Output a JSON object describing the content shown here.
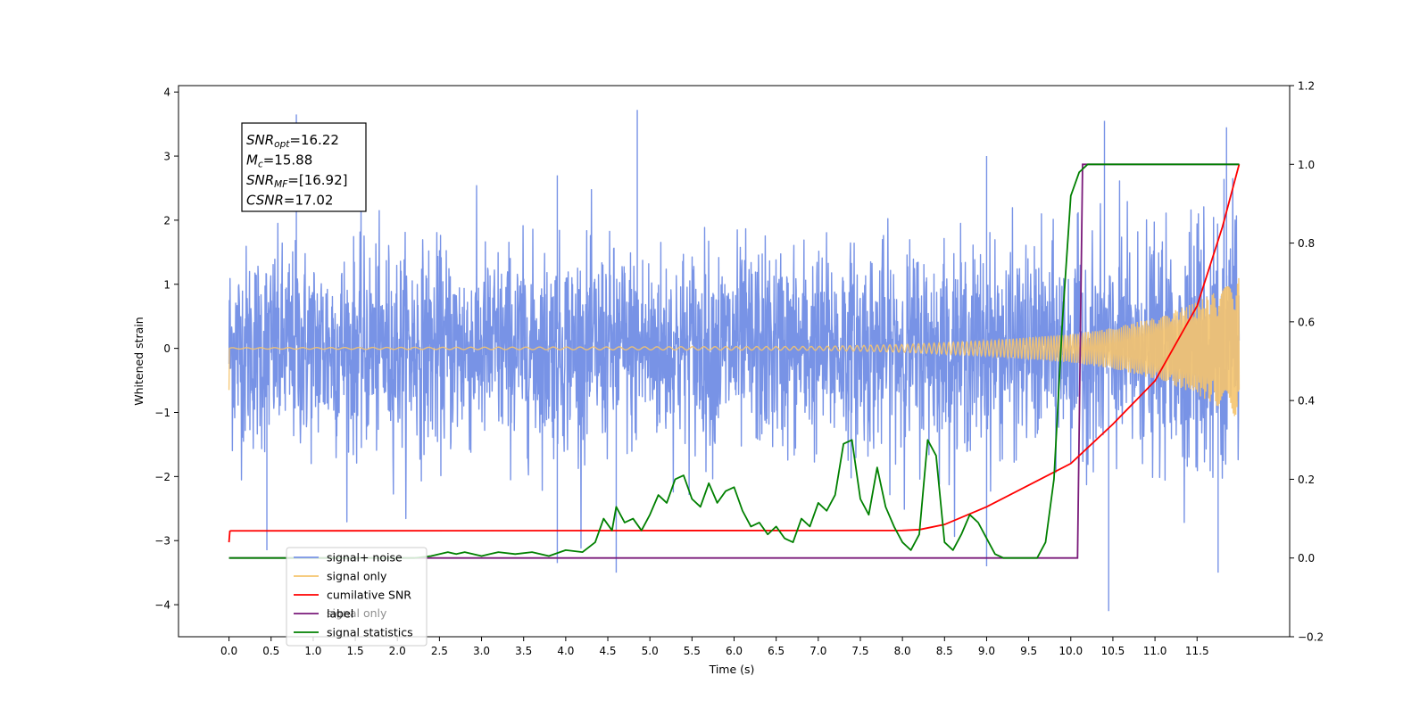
{
  "chart_data": {
    "type": "line",
    "xlabel": "Time (s)",
    "ylabel": "Whitened strain",
    "xlim": [
      -0.6,
      12.6
    ],
    "ylim_left": [
      -4.5,
      4.1
    ],
    "ylim_right": [
      -0.2,
      1.2
    ],
    "x_ticks": [
      "0.0",
      "0.5",
      "1.0",
      "1.5",
      "2.0",
      "2.5",
      "3.0",
      "3.5",
      "4.0",
      "4.5",
      "5.0",
      "5.5",
      "6.0",
      "6.5",
      "7.0",
      "7.5",
      "8.0",
      "8.5",
      "9.0",
      "9.5",
      "10.0",
      "10.5",
      "11.0",
      "11.5"
    ],
    "y_ticks_left": [
      "4",
      "3",
      "2",
      "1",
      "0",
      "−1",
      "−2",
      "−3",
      "−4"
    ],
    "y_ticks_right": [
      "1.2",
      "1.0",
      "0.8",
      "0.6",
      "0.4",
      "0.2",
      "0.0",
      "−0.2"
    ],
    "annotation": [
      {
        "name": "SNR",
        "sub": "opt",
        "value": "=16.22"
      },
      {
        "name": "M",
        "sub": "c",
        "value": "=15.88"
      },
      {
        "name": "SNR",
        "sub": "MF",
        "value": "=[16.92]"
      },
      {
        "name": "CSNR",
        "sub": "",
        "value": "=17.02"
      }
    ],
    "legend": {
      "placement": "lower-left",
      "entries": [
        {
          "label": "signal+ noise",
          "color": "#7893e6"
        },
        {
          "label": "signal only",
          "color": "#f5c46e"
        },
        {
          "label": "cumilative SNR",
          "color": "#ff0000"
        },
        {
          "label": "label",
          "color": "#7a1a7a"
        },
        {
          "label": "signal statistics",
          "color": "#008000"
        }
      ],
      "hidden_text": "signal only"
    },
    "series": [
      {
        "name": "signal+ noise",
        "axis": "left",
        "color": "#7893e6",
        "description": "whitened noisy strain, roughly Gaussian, peaks near ±3.7",
        "x_range": [
          0.0,
          12.0
        ],
        "spikes_up": [
          [
            0.8,
            3.65
          ],
          [
            4.85,
            3.72
          ],
          [
            10.4,
            3.55
          ],
          [
            11.85,
            3.45
          ],
          [
            3.9,
            2.7
          ],
          [
            9.0,
            3.0
          ]
        ],
        "spikes_down": [
          [
            10.45,
            -4.1
          ],
          [
            4.6,
            -3.5
          ],
          [
            11.75,
            -3.5
          ],
          [
            0.45,
            -3.15
          ],
          [
            3.9,
            -3.35
          ],
          [
            9.0,
            -3.4
          ]
        ]
      },
      {
        "name": "signal only",
        "axis": "left",
        "color": "#f5c46e",
        "description": "chirp with amplitude growing toward merger",
        "x": [
          0.0,
          7.0,
          8.0,
          9.0,
          10.0,
          10.5,
          11.0,
          11.5,
          12.0
        ],
        "amplitude": [
          0.01,
          0.03,
          0.06,
          0.12,
          0.22,
          0.32,
          0.48,
          0.72,
          1.1
        ]
      },
      {
        "name": "cumilative SNR",
        "axis": "right",
        "color": "#ff0000",
        "x": [
          0.0,
          0.01,
          0.02,
          8.0,
          8.2,
          8.5,
          9.0,
          9.5,
          10.0,
          10.5,
          11.0,
          11.5,
          11.8,
          12.0
        ],
        "y": [
          0.04,
          0.068,
          0.069,
          0.07,
          0.072,
          0.085,
          0.13,
          0.185,
          0.24,
          0.34,
          0.45,
          0.64,
          0.84,
          1.0
        ]
      },
      {
        "name": "label",
        "axis": "right",
        "color": "#7a1a7a",
        "x": [
          0.0,
          10.08,
          10.14,
          12.0
        ],
        "y": [
          0.0,
          0.0,
          1.0,
          1.0
        ]
      },
      {
        "name": "signal statistics",
        "axis": "right",
        "color": "#008000",
        "x": [
          0.0,
          2.2,
          2.4,
          2.6,
          2.7,
          2.8,
          3.0,
          3.1,
          3.2,
          3.4,
          3.6,
          3.8,
          4.0,
          4.2,
          4.35,
          4.45,
          4.55,
          4.6,
          4.7,
          4.8,
          4.9,
          5.0,
          5.1,
          5.2,
          5.3,
          5.4,
          5.5,
          5.6,
          5.7,
          5.8,
          5.9,
          6.0,
          6.1,
          6.2,
          6.3,
          6.4,
          6.5,
          6.6,
          6.7,
          6.8,
          6.9,
          7.0,
          7.1,
          7.2,
          7.3,
          7.4,
          7.5,
          7.6,
          7.7,
          7.8,
          7.9,
          8.0,
          8.1,
          8.2,
          8.3,
          8.4,
          8.5,
          8.6,
          8.7,
          8.8,
          8.9,
          9.0,
          9.1,
          9.2,
          9.4,
          9.6,
          9.7,
          9.8,
          9.9,
          10.0,
          10.1,
          10.2,
          10.4,
          10.6,
          11.0,
          11.5,
          12.0
        ],
        "y": [
          0.0,
          0.0,
          0.005,
          0.015,
          0.01,
          0.015,
          0.005,
          0.01,
          0.015,
          0.01,
          0.015,
          0.005,
          0.02,
          0.015,
          0.04,
          0.1,
          0.07,
          0.13,
          0.09,
          0.1,
          0.07,
          0.11,
          0.16,
          0.14,
          0.2,
          0.21,
          0.15,
          0.13,
          0.19,
          0.14,
          0.17,
          0.18,
          0.12,
          0.08,
          0.09,
          0.06,
          0.08,
          0.05,
          0.04,
          0.1,
          0.08,
          0.14,
          0.12,
          0.16,
          0.29,
          0.3,
          0.15,
          0.11,
          0.23,
          0.13,
          0.08,
          0.04,
          0.02,
          0.06,
          0.3,
          0.26,
          0.04,
          0.02,
          0.06,
          0.11,
          0.09,
          0.05,
          0.01,
          0.0,
          0.0,
          0.0,
          0.04,
          0.2,
          0.6,
          0.92,
          0.98,
          1.0,
          1.0,
          1.0,
          1.0,
          1.0,
          1.0
        ]
      }
    ]
  }
}
